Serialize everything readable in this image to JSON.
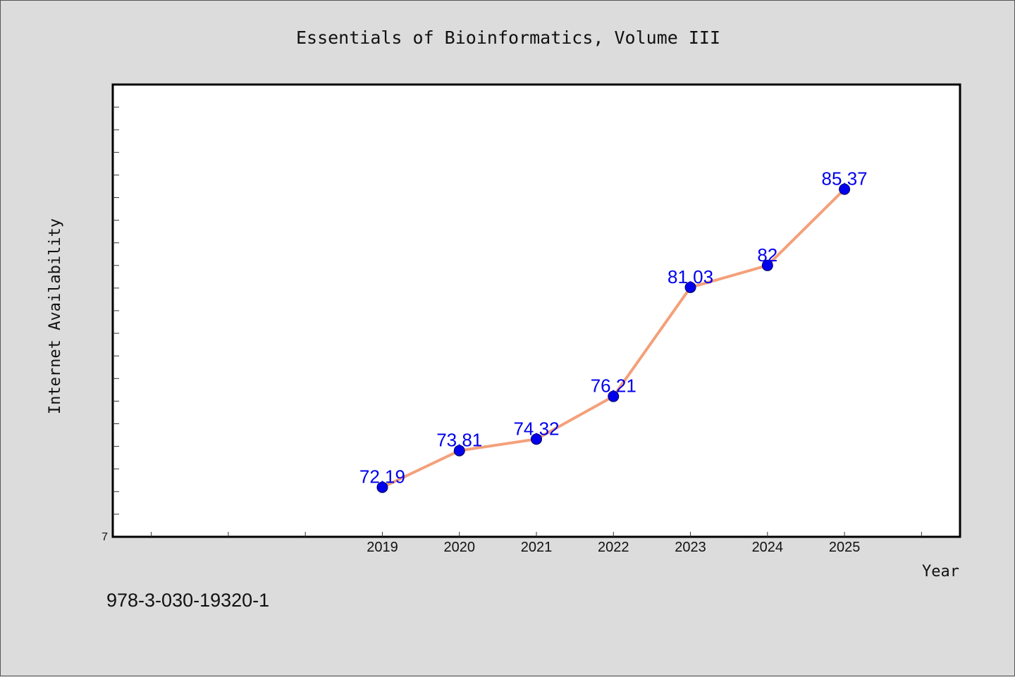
{
  "chart_data": {
    "type": "line",
    "title": "Essentials of Bioinformatics, Volume III",
    "xlabel": "Year",
    "ylabel": "Internet Availability",
    "categories": [
      "2019",
      "2020",
      "2021",
      "2022",
      "2023",
      "2024",
      "2025"
    ],
    "x_range": [
      2015.5,
      2026.5
    ],
    "series": [
      {
        "values": [
          72.19,
          73.81,
          74.32,
          76.21,
          81.03,
          82.0,
          85.37
        ],
        "labels": [
          "72.19",
          "73.81",
          "74.32",
          "76.21",
          "81.03",
          "82",
          "85.37"
        ]
      }
    ],
    "y_range": [
      70,
      90
    ],
    "y_tick_label": "7",
    "grid": false,
    "legend": "none",
    "colors": {
      "line": "#f4a07a",
      "marker": "#0000ee",
      "label": "#0000ee",
      "background": "#dcdcdc",
      "plot_bg": "#ffffff"
    }
  },
  "footer": {
    "isbn": "978-3-030-19320-1"
  }
}
